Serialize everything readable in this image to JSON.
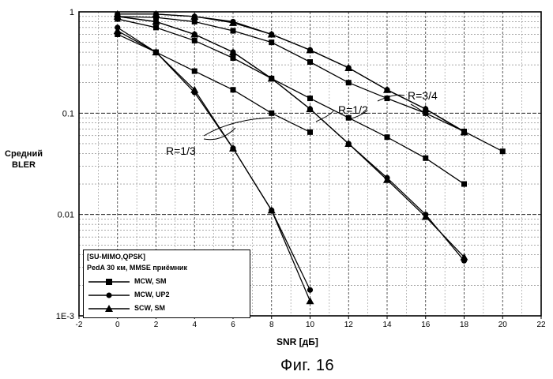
{
  "ylabel": [
    "Средний",
    "BLER"
  ],
  "xlabel": "SNR [дБ]",
  "caption": "Фиг. 16",
  "legend": {
    "line1": "[SU-MIMO,QPSK]",
    "line2": "PedA 30 км, MMSE приёмник",
    "entries": [
      "MCW, SM",
      "MCW, UP2",
      "SCW, SM"
    ]
  },
  "annotations": {
    "r13": "R=1/3",
    "r12": "R=1/2",
    "r34": "R=3/4"
  },
  "chart_data": {
    "type": "line",
    "xlabel": "SNR [дБ]",
    "ylabel": "Средний BLER",
    "xlim": [
      -2,
      22
    ],
    "ylim": [
      0.001,
      1
    ],
    "yscale": "log",
    "xticks": [
      -2,
      0,
      2,
      4,
      6,
      8,
      10,
      12,
      14,
      16,
      18,
      20,
      22
    ],
    "xtick_labels": [
      "-2",
      "0",
      "2",
      "4",
      "6",
      "8",
      "10",
      "12",
      "14",
      "16",
      "18",
      "20",
      "22"
    ],
    "yticks": [
      1,
      0.1,
      0.01,
      0.001
    ],
    "ytick_labels": [
      "1",
      "0.1",
      "0.01",
      "1E-3"
    ],
    "grid": true,
    "legend_position": "bottom-left",
    "series": [
      {
        "name": "MCW, SM",
        "marker": "square",
        "group": "R=1/3",
        "x": [
          0,
          2,
          4,
          6,
          8,
          10
        ],
        "y": [
          0.6,
          0.4,
          0.26,
          0.17,
          0.1,
          0.065
        ]
      },
      {
        "name": "MCW, UP2",
        "marker": "circle",
        "group": "R=1/3",
        "x": [
          0,
          2,
          4,
          6,
          8,
          10
        ],
        "y": [
          0.7,
          0.4,
          0.16,
          0.045,
          0.011,
          0.0018
        ]
      },
      {
        "name": "SCW, SM",
        "marker": "triangle",
        "group": "R=1/3",
        "x": [
          0,
          2,
          4,
          6,
          8,
          10
        ],
        "y": [
          0.65,
          0.4,
          0.17,
          0.045,
          0.011,
          0.0014
        ]
      },
      {
        "name": "MCW, SM",
        "marker": "square",
        "group": "R=1/2",
        "x": [
          0,
          2,
          4,
          6,
          8,
          10,
          12,
          14,
          16,
          18
        ],
        "y": [
          0.85,
          0.7,
          0.52,
          0.35,
          0.22,
          0.14,
          0.09,
          0.058,
          0.036,
          0.02
        ]
      },
      {
        "name": "MCW, UP2",
        "marker": "circle",
        "group": "R=1/2",
        "x": [
          0,
          2,
          4,
          6,
          8,
          10,
          12,
          14,
          16,
          18
        ],
        "y": [
          0.9,
          0.8,
          0.6,
          0.4,
          0.22,
          0.11,
          0.05,
          0.023,
          0.01,
          0.0035
        ]
      },
      {
        "name": "SCW, SM",
        "marker": "triangle",
        "group": "R=1/2",
        "x": [
          0,
          2,
          4,
          6,
          8,
          10,
          12,
          14,
          16,
          18
        ],
        "y": [
          0.9,
          0.8,
          0.6,
          0.4,
          0.22,
          0.11,
          0.05,
          0.022,
          0.0095,
          0.0038
        ]
      },
      {
        "name": "MCW, SM",
        "marker": "square",
        "group": "R=3/4",
        "x": [
          0,
          2,
          4,
          6,
          8,
          10,
          12,
          14,
          16,
          18,
          20
        ],
        "y": [
          0.9,
          0.88,
          0.8,
          0.65,
          0.5,
          0.32,
          0.2,
          0.14,
          0.1,
          0.066,
          0.042
        ]
      },
      {
        "name": "MCW, UP2",
        "marker": "circle",
        "group": "R=3/4",
        "x": [
          0,
          2,
          4,
          6,
          8,
          10,
          12,
          14,
          16,
          18
        ],
        "y": [
          0.95,
          0.95,
          0.9,
          0.8,
          0.6,
          0.42,
          0.28,
          0.17,
          0.11,
          0.066
        ]
      },
      {
        "name": "SCW, SM",
        "marker": "triangle",
        "group": "R=3/4",
        "x": [
          0,
          2,
          4,
          6,
          8,
          10,
          12,
          14,
          16,
          18
        ],
        "y": [
          0.95,
          0.95,
          0.9,
          0.78,
          0.6,
          0.42,
          0.28,
          0.17,
          0.11,
          0.065
        ]
      }
    ]
  }
}
